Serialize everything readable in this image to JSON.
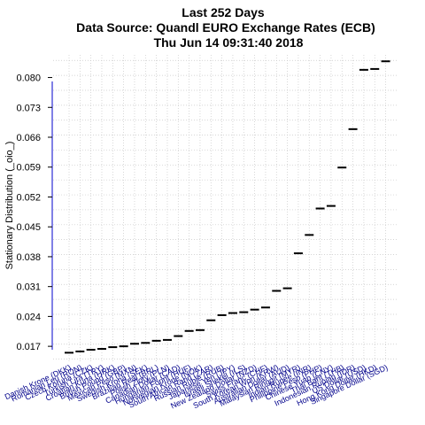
{
  "chart_data": {
    "type": "scatter",
    "title": "Last 252 Days",
    "subtitle": "Data Source: Quandl EURO Exchange Rates (ECB)",
    "timestamp": "Thu Jun 14 09:31:40 2018",
    "xlabel": "",
    "ylabel": "Stationary Distribution (_oio_)",
    "yticks": [
      0.017,
      0.024,
      0.031,
      0.038,
      0.045,
      0.052,
      0.059,
      0.066,
      0.073,
      0.08
    ],
    "ylim": [
      0.0135,
      0.0853
    ],
    "grid": true,
    "categories": [
      "Danish Krone (DKK)",
      "Romanian Leu (RON)",
      "Czech Koruna (CZK)",
      "Turkish Lira (TRY)",
      "Croatian Kuna (HRK)",
      "British Pound (GBP)",
      "Mexican Peso (MXN)",
      "Swedish Krona (SEK)",
      "Brazilian Real (BRL)",
      "Polish Zloty (PLN)",
      "Canadian Dollar (CAD)",
      "Hungarian Forint (HUF)",
      "Norwegian Krone (NOK)",
      "South African Rand (ZAR)",
      "Russian Ruble (RUB)",
      "Japanese Yen (JPY)",
      "Israeli Shekel (ILS)",
      "New Zealand Dollar (NZD)",
      "Swiss Franc (CHF)",
      "South Korean Won (KRW)",
      "Australian Dollar (AUD)",
      "Malaysian Ringgit (MYR)",
      "Indian Rupee (INR)",
      "Philippine Peso (PHP)",
      "Chinese Yuan (CNY)",
      "Thai Baht (THB)",
      "Indonesian Rupiah (IDR)",
      "US Dollar (USD)",
      "Hong Kong Dollar (HKD)",
      "Singapore Dollar (SGD)"
    ],
    "values": [
      0.0155,
      0.0158,
      0.0162,
      0.0164,
      0.0168,
      0.017,
      0.0176,
      0.0178,
      0.0183,
      0.0185,
      0.0194,
      0.0206,
      0.0208,
      0.0231,
      0.0243,
      0.0248,
      0.025,
      0.0256,
      0.0261,
      0.03,
      0.0306,
      0.0388,
      0.0431,
      0.0493,
      0.0499,
      0.0589,
      0.0679,
      0.0818,
      0.082,
      0.0838
    ]
  }
}
